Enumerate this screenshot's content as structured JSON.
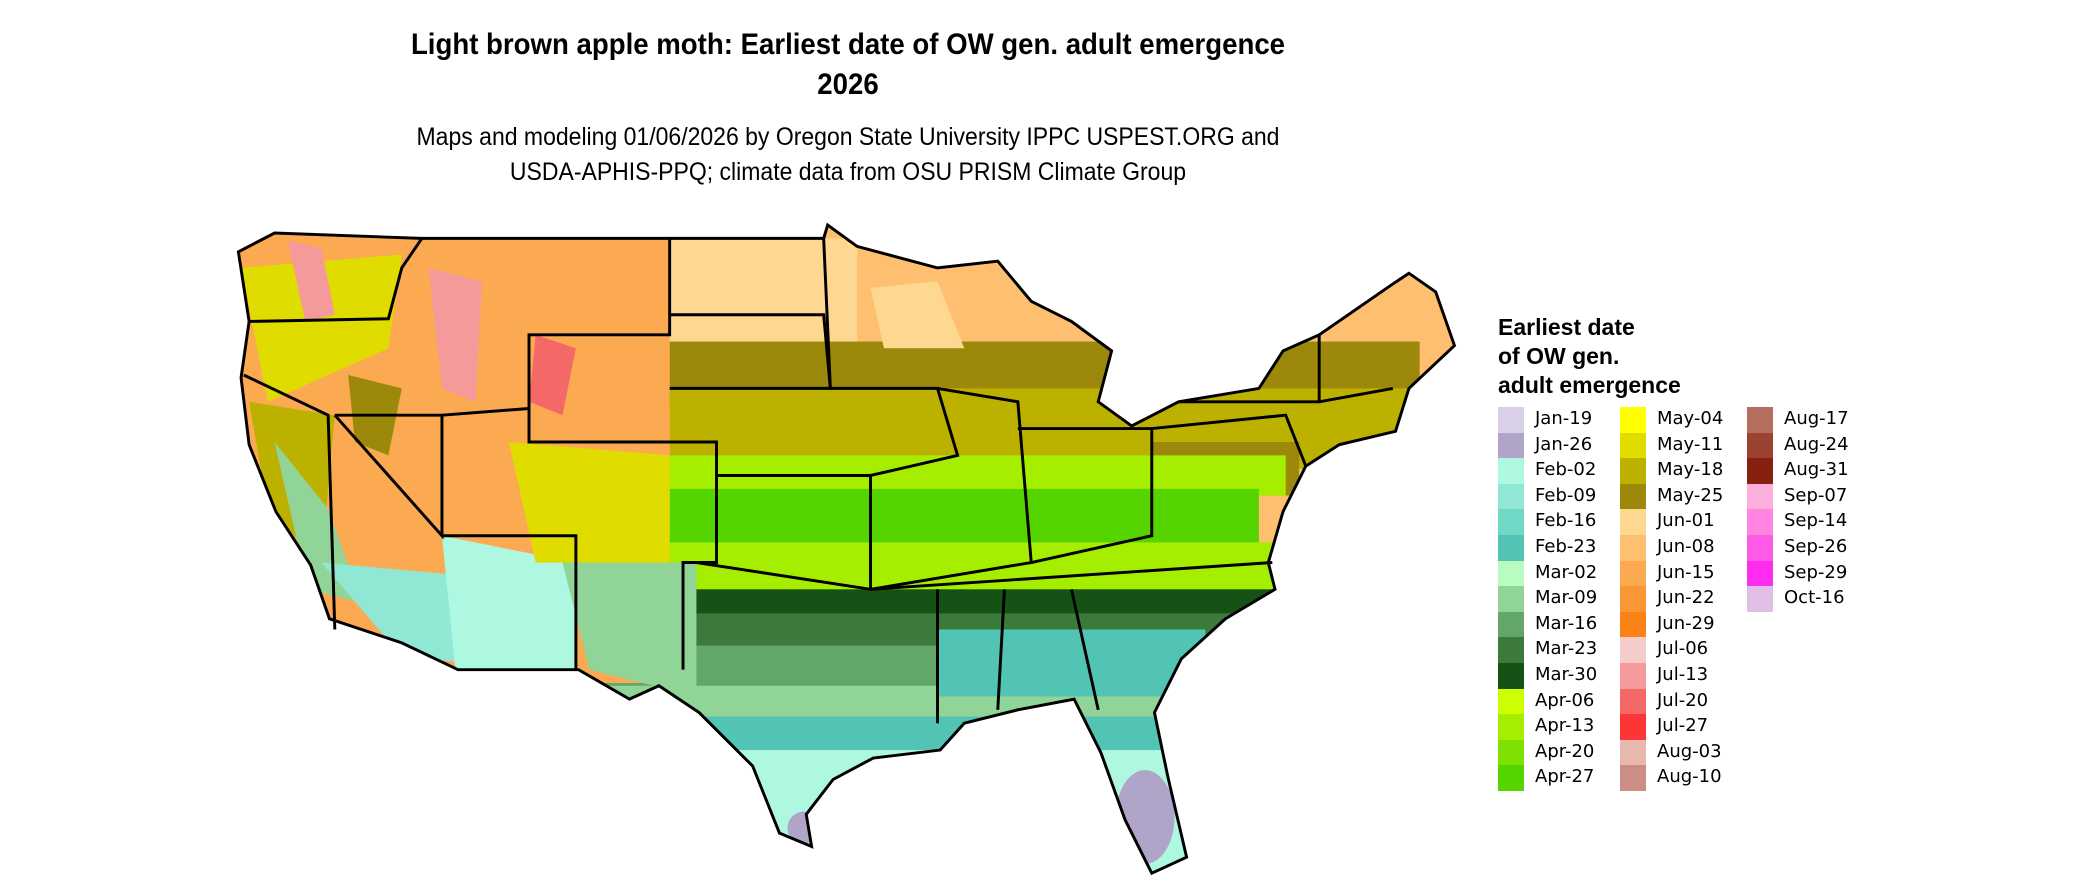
{
  "title": "Light brown apple moth: Earliest date of OW gen. adult emergence",
  "year": "2026",
  "subtitle_line1": "Maps and modeling 01/06/2026 by Oregon State University IPPC USPEST.ORG and",
  "subtitle_line2": "USDA-APHIS-PPQ; climate data from OSU PRISM Climate Group",
  "legend": {
    "title_lines": [
      "Earliest date",
      "of OW gen.",
      "adult emergence"
    ],
    "items": [
      {
        "label": "Jan-19",
        "color": "#d9d0e8"
      },
      {
        "label": "Jan-26",
        "color": "#b0a4c8"
      },
      {
        "label": "Feb-02",
        "color": "#aef8e2"
      },
      {
        "label": "Feb-09",
        "color": "#90e8d4"
      },
      {
        "label": "Feb-16",
        "color": "#72d8c6"
      },
      {
        "label": "Feb-23",
        "color": "#52c4b4"
      },
      {
        "label": "Mar-02",
        "color": "#b8fcc0"
      },
      {
        "label": "Mar-09",
        "color": "#90d498"
      },
      {
        "label": "Mar-16",
        "color": "#62a66a"
      },
      {
        "label": "Mar-23",
        "color": "#3c7a3c"
      },
      {
        "label": "Mar-30",
        "color": "#165216"
      },
      {
        "label": "Apr-06",
        "color": "#ccff00"
      },
      {
        "label": "Apr-13",
        "color": "#a6ee00"
      },
      {
        "label": "Apr-20",
        "color": "#80e000"
      },
      {
        "label": "Apr-27",
        "color": "#56d400"
      },
      {
        "label": "May-04",
        "color": "#ffff00"
      },
      {
        "label": "May-11",
        "color": "#e0dc00"
      },
      {
        "label": "May-18",
        "color": "#bdb100"
      },
      {
        "label": "May-25",
        "color": "#9c880a"
      },
      {
        "label": "Jun-01",
        "color": "#fed890"
      },
      {
        "label": "Jun-08",
        "color": "#fec070"
      },
      {
        "label": "Jun-15",
        "color": "#fbaa52"
      },
      {
        "label": "Jun-22",
        "color": "#fb9634"
      },
      {
        "label": "Jun-29",
        "color": "#fb8216"
      },
      {
        "label": "Jul-06",
        "color": "#f4cccc"
      },
      {
        "label": "Jul-13",
        "color": "#f49a9a"
      },
      {
        "label": "Jul-20",
        "color": "#f46868"
      },
      {
        "label": "Jul-27",
        "color": "#fc3636"
      },
      {
        "label": "Aug-03",
        "color": "#e8b8ae"
      },
      {
        "label": "Aug-10",
        "color": "#cc8e84"
      },
      {
        "label": "Aug-17",
        "color": "#b46e5e"
      },
      {
        "label": "Aug-24",
        "color": "#9c4232"
      },
      {
        "label": "Aug-31",
        "color": "#882010"
      },
      {
        "label": "Sep-07",
        "color": "#feb0dc"
      },
      {
        "label": "Sep-14",
        "color": "#fe84e0"
      },
      {
        "label": "Sep-26",
        "color": "#fe5ae6"
      },
      {
        "label": "Sep-29",
        "color": "#fe2cee"
      },
      {
        "label": "Oct-16",
        "color": "#e0bee6"
      }
    ]
  }
}
